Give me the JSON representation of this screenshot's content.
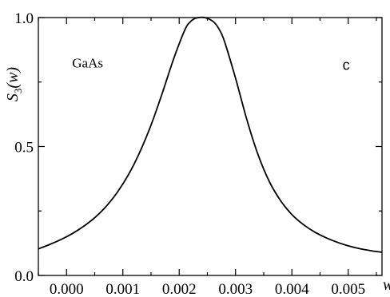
{
  "chart_data": {
    "type": "line",
    "title": "",
    "xlabel": "w",
    "ylabel": {
      "symbol": "S",
      "subscript": "3",
      "argument": "(w)"
    },
    "xlim": [
      -0.0005,
      0.0056
    ],
    "ylim": [
      0.0,
      1.0
    ],
    "x_ticks": [
      0.0,
      0.001,
      0.002,
      0.003,
      0.004,
      0.005
    ],
    "x_tick_labels": [
      "0.000",
      "0.001",
      "0.002",
      "0.003",
      "0.004",
      "0.005"
    ],
    "y_ticks": [
      0.0,
      0.5,
      1.0
    ],
    "y_tick_labels": [
      "0.0",
      "0.5",
      "1.0"
    ],
    "grid": false,
    "annotations": [
      {
        "text": "GaAs",
        "x": 0.0001,
        "y": 0.8
      },
      {
        "text": "c",
        "x": 0.0049,
        "y": 0.8
      }
    ],
    "series": [
      {
        "x": [
          -0.0005,
          -0.0003,
          -0.0001,
          0.0001,
          0.0003,
          0.0005,
          0.0007,
          0.0009,
          0.0011,
          0.0013,
          0.0015,
          0.0017,
          0.0019,
          0.0021,
          0.0022,
          0.0023,
          0.00245,
          0.0026,
          0.0027,
          0.0028,
          0.003,
          0.0032,
          0.0034,
          0.0036,
          0.0038,
          0.004,
          0.0042,
          0.0044,
          0.0046,
          0.0048,
          0.005,
          0.0052,
          0.0054,
          0.0056
        ],
        "values": [
          0.103,
          0.12,
          0.139,
          0.162,
          0.19,
          0.224,
          0.267,
          0.322,
          0.391,
          0.478,
          0.583,
          0.707,
          0.839,
          0.952,
          0.984,
          0.998,
          1.0,
          0.985,
          0.958,
          0.91,
          0.765,
          0.605,
          0.468,
          0.364,
          0.29,
          0.236,
          0.198,
          0.169,
          0.147,
          0.129,
          0.115,
          0.104,
          0.096,
          0.09
        ]
      }
    ]
  }
}
